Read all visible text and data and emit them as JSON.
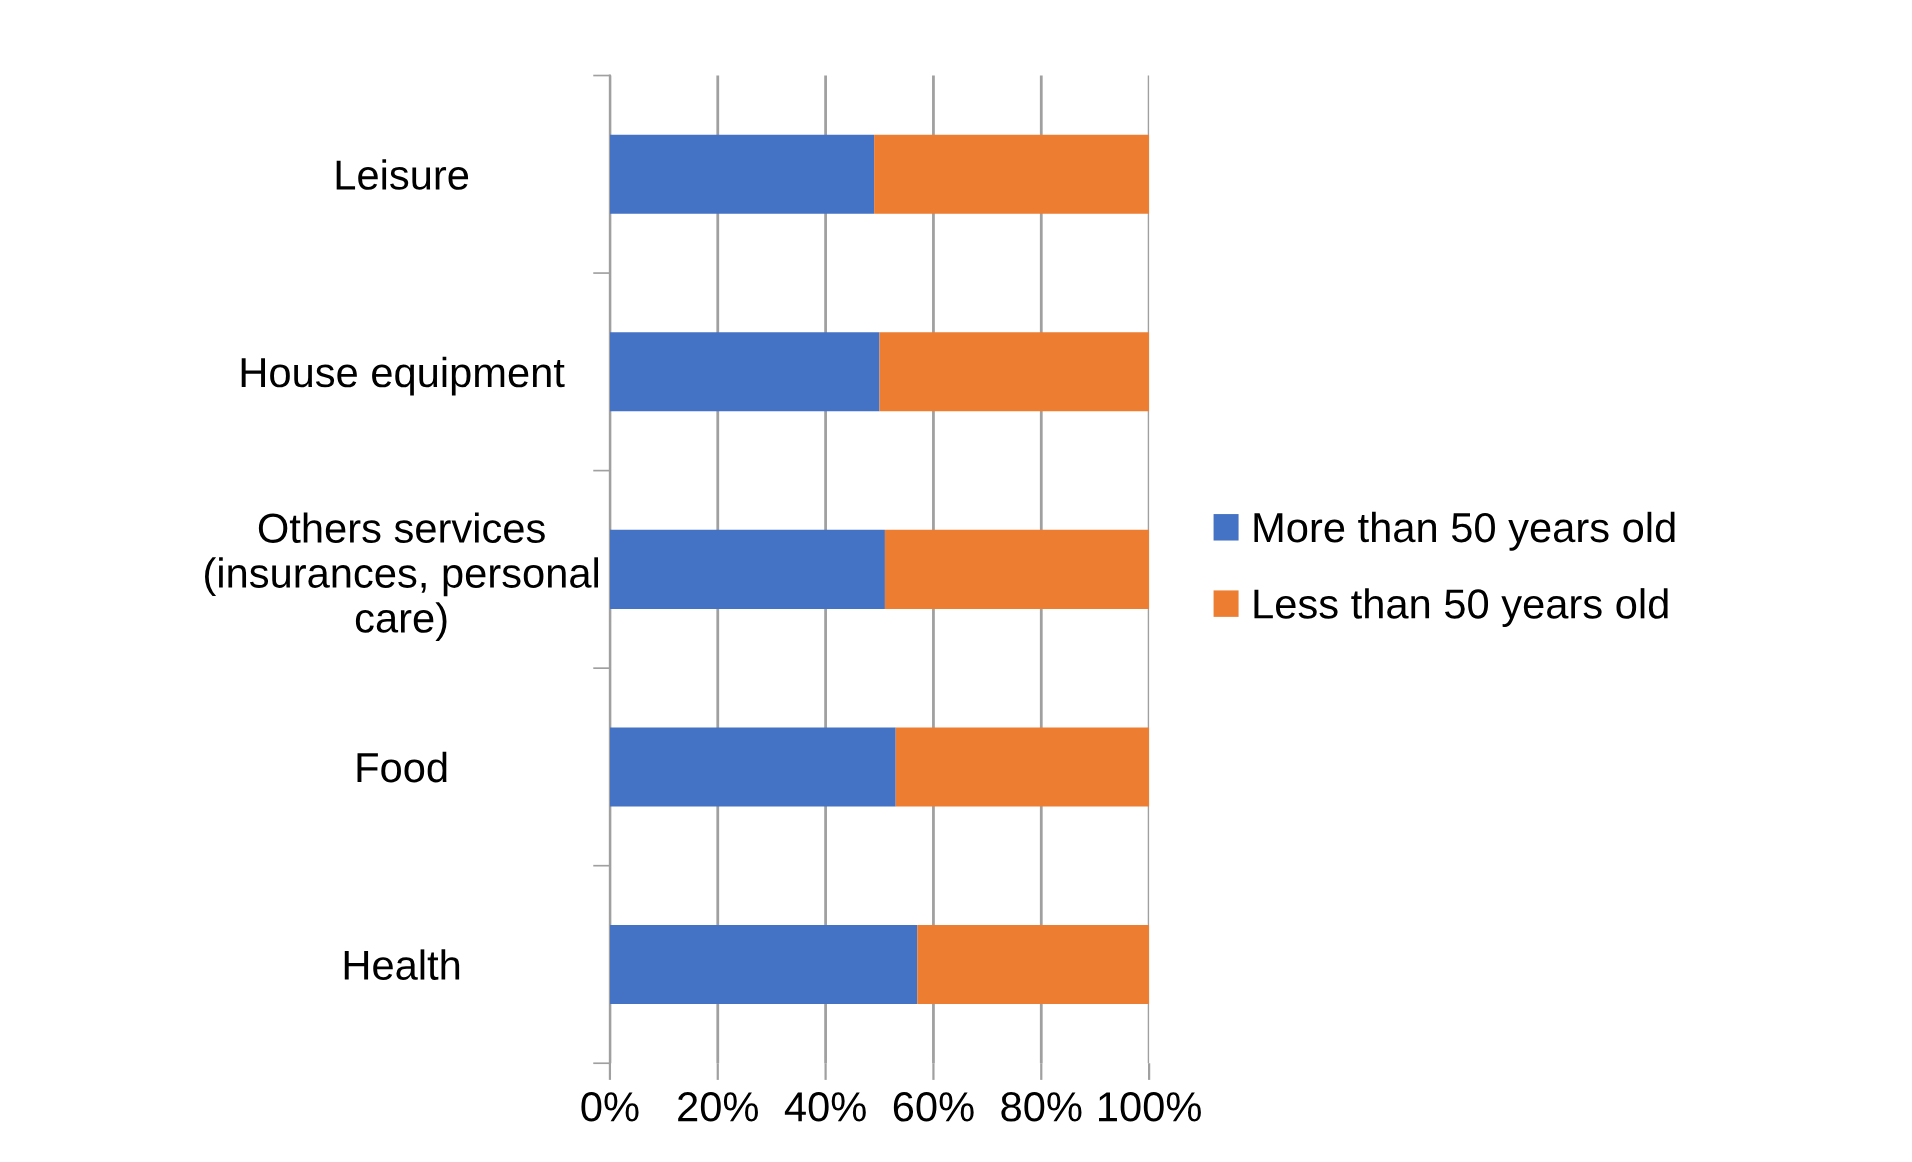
{
  "chart_data": {
    "type": "bar",
    "orientation": "horizontal",
    "stacked": true,
    "categories": [
      "Leisure",
      "House equipment",
      "Others services\n(insurances, personal\ncare)",
      "Food",
      "Health"
    ],
    "series": [
      {
        "name": "More than 50 years old",
        "color": "#4472c4",
        "values": [
          49,
          50,
          51,
          53,
          57
        ]
      },
      {
        "name": "Less than 50 years old",
        "color": "#ed7d31",
        "values": [
          51,
          50,
          49,
          47,
          43
        ]
      }
    ],
    "xlim": [
      0,
      100
    ],
    "xticks": [
      {
        "value": 0,
        "label": "0%"
      },
      {
        "value": 20,
        "label": "20%"
      },
      {
        "value": 40,
        "label": "40%"
      },
      {
        "value": 60,
        "label": "60%"
      },
      {
        "value": 80,
        "label": "80%"
      },
      {
        "value": 100,
        "label": "100%"
      }
    ],
    "grid": "x",
    "legend": "right"
  }
}
